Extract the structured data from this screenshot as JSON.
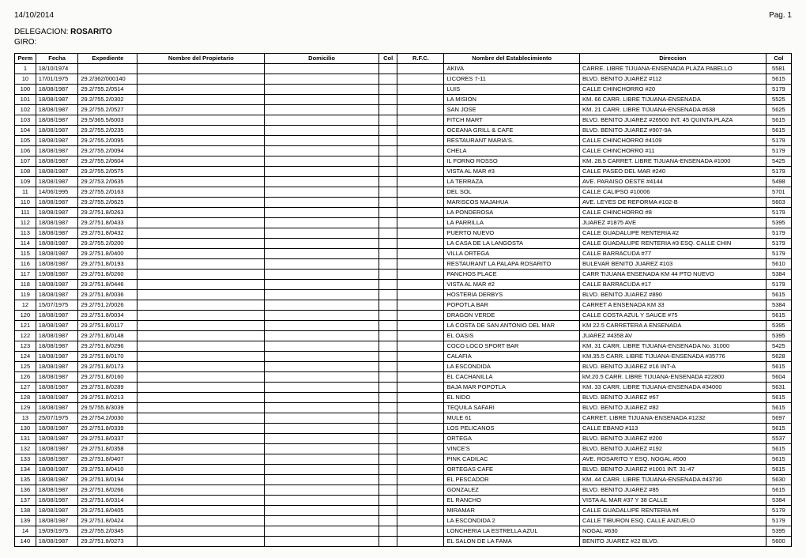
{
  "header": {
    "date": "14/10/2014",
    "page_label": "Pag. 1",
    "delegacion_label": "DELEGACION:",
    "delegacion_value": "ROSARITO",
    "giro_label": "GIRO:",
    "giro_value": ""
  },
  "columns": {
    "perm": "Perm",
    "fecha": "Fecha",
    "expediente": "Expediente",
    "propietario": "Nombre del Propietario",
    "domicilio": "Domicilio",
    "col1": "Col",
    "rfc": "R.F.C.",
    "establecimiento": "Nombre del Establecimiento",
    "direccion": "Direccion",
    "col2": "Col"
  },
  "rows": [
    {
      "perm": "1",
      "fecha": "18/10/1974",
      "exp": "",
      "est": "AKIVA",
      "dir": "CARRE. LIBRE TIJUANA-ENSENADA PLAZA PABELLO",
      "col2": "5581"
    },
    {
      "perm": "10",
      "fecha": "17/01/1975",
      "exp": "29.2/362/000140",
      "est": "LICORES 7-11",
      "dir": "BLVD. BENITO JUAREZ #112",
      "col2": "5615"
    },
    {
      "perm": "100",
      "fecha": "18/08/1987",
      "exp": "29.2/755.2/0514",
      "est": "LUIS",
      "dir": "CALLE CHINCHORRO #20",
      "col2": "5179"
    },
    {
      "perm": "101",
      "fecha": "18/08/1987",
      "exp": "29.2/755.2/0302",
      "est": "LA MISION",
      "dir": "KM. 66 CARR. LIBRE TIJUANA-ENSENADA",
      "col2": "5525"
    },
    {
      "perm": "102",
      "fecha": "18/08/1987",
      "exp": "29.2/755.2/0527",
      "est": "SAN JOSE",
      "dir": "KM. 21 CARR. LIBRE TIJUANA-ENSENADA #638",
      "col2": "5625"
    },
    {
      "perm": "103",
      "fecha": "18/08/1987",
      "exp": "29.5/365.5/6003",
      "est": "FITCH MART",
      "dir": "BLVD. BENITO JUAREZ #26500 INT. 45 QUINTA PLAZA",
      "col2": "5615"
    },
    {
      "perm": "104",
      "fecha": "18/08/1987",
      "exp": "29.2/755.2/0235",
      "est": "OCEANA GRILL & CAFE",
      "dir": "BLVD. BENITO JUAREZ #907-9A",
      "col2": "5615"
    },
    {
      "perm": "105",
      "fecha": "18/08/1987",
      "exp": "29.2/755.2/0095",
      "est": "RESTAURANT  MARIA'S.",
      "dir": "CALLE CHINCHORRO #4109",
      "col2": "5179"
    },
    {
      "perm": "106",
      "fecha": "18/08/1987",
      "exp": "29.2/755.2/0094",
      "est": "CHELA",
      "dir": "CALLE CHINCHORRO #11",
      "col2": "5179"
    },
    {
      "perm": "107",
      "fecha": "18/08/1987",
      "exp": "29.2/755.2/0604",
      "est": "IL FORNO ROSSO",
      "dir": "KM. 28.5 CARRET. LIBRE TIJUANA-ENSENADA #1000",
      "col2": "5425"
    },
    {
      "perm": "108",
      "fecha": "18/08/1987",
      "exp": "29.2/755.2/0575",
      "est": "VISTA AL MAR #3",
      "dir": "CALLE PASEO DEL MAR #240",
      "col2": "5179"
    },
    {
      "perm": "109",
      "fecha": "18/08/1987",
      "exp": "29.2/753.2/0635",
      "est": "LA TERRAZA",
      "dir": "AVE. PARAISO OESTE #4144",
      "col2": "5498"
    },
    {
      "perm": "11",
      "fecha": "14/06/1995",
      "exp": "29.2/755.2/0163",
      "est": "DEL SOL",
      "dir": "CALLE CALIPSO #10006",
      "col2": "5701"
    },
    {
      "perm": "110",
      "fecha": "18/08/1987",
      "exp": "29.2/755.2/0625",
      "est": "MARISCOS MAJAHUA",
      "dir": "AVE. LEYES DE REFORMA #102-B",
      "col2": "5603"
    },
    {
      "perm": "111",
      "fecha": "18/08/1987",
      "exp": "29.2/751.8/0263",
      "est": "LA PONDEROSA",
      "dir": "CALLE CHINCHORRO #8",
      "col2": "5179"
    },
    {
      "perm": "112",
      "fecha": "18/08/1987",
      "exp": "29.2/751.8/0433",
      "est": "LA PARRILLA",
      "dir": "JUAREZ #1875 AVE",
      "col2": "5395"
    },
    {
      "perm": "113",
      "fecha": "18/08/1987",
      "exp": "29.2/751.8/0432",
      "est": "PUERTO NUEVO",
      "dir": "CALLE GUADALUPE RENTERIA #2",
      "col2": "5179"
    },
    {
      "perm": "114",
      "fecha": "18/08/1987",
      "exp": "29.2/755.2/0200",
      "est": "LA CASA DE LA LANGOSTA",
      "dir": "CALLE GUADALUPE RENTERIA #3 ESQ. CALLE CHIN",
      "col2": "5179"
    },
    {
      "perm": "115",
      "fecha": "18/08/1987",
      "exp": "29.2/751.8/0400",
      "est": "VILLA ORTEGA",
      "dir": "CALLE BARRACUDA #77",
      "col2": "5179"
    },
    {
      "perm": "116",
      "fecha": "18/08/1987",
      "exp": "29.2/751.8/0193",
      "est": "RESTAURANT LA PALAPA ROSARITO",
      "dir": "BULEVAR BENITO JUAREZ #103",
      "col2": "5610"
    },
    {
      "perm": "117",
      "fecha": "19/08/1987",
      "exp": "29.2/751.8/0260",
      "est": "PANCHOS PLACE",
      "dir": "CARR TIJUANA ENSENADA KM 44 PTO NUEVO",
      "col2": "5384"
    },
    {
      "perm": "118",
      "fecha": "18/08/1987",
      "exp": "29.2/751.8/0446",
      "est": "VISTA AL MAR #2",
      "dir": "CALLE BARRACUDA #17",
      "col2": "5179"
    },
    {
      "perm": "119",
      "fecha": "18/08/1987",
      "exp": "29.2/751.8/0036",
      "est": "HOSTERIA DERBYS",
      "dir": "BLVD. BENITO JUAREZ #890",
      "col2": "5615"
    },
    {
      "perm": "12",
      "fecha": "15/07/1975",
      "exp": "29.2/751.2/0026",
      "est": "POPOTLA BAR",
      "dir": "CARRET A ENSENADA KM 33",
      "col2": "5384"
    },
    {
      "perm": "120",
      "fecha": "18/08/1987",
      "exp": "29.2/751.8/0034",
      "est": "DRAGON VERDE",
      "dir": "CALLE COSTA AZUL Y SAUCE #75",
      "col2": "5615"
    },
    {
      "perm": "121",
      "fecha": "18/08/1987",
      "exp": "29.2/751.8/0117",
      "est": "LA COSTA DE SAN ANTONIO DEL MAR",
      "dir": "KM 22.5 CARRETERA A ENSENADA",
      "col2": "5395"
    },
    {
      "perm": "122",
      "fecha": "18/08/1987",
      "exp": "29.2/751.8/0148",
      "est": "EL OASIS",
      "dir": "JUAREZ #4358 AV",
      "col2": "5395"
    },
    {
      "perm": "123",
      "fecha": "18/08/1987",
      "exp": "29.2/751.8/0296",
      "est": "COCO LOCO  SPORT BAR",
      "dir": "KM. 31 CARR. LIBRE TIJUANA-ENSENADA No. 31000",
      "col2": "5425"
    },
    {
      "perm": "124",
      "fecha": "18/08/1987",
      "exp": "29.2/751.8/0170",
      "est": "CALAFIA",
      "dir": "KM.35.5 CARR. LIBRE TIJUANA-ENSENADA #35776",
      "col2": "5628"
    },
    {
      "perm": "125",
      "fecha": "18/08/1987",
      "exp": "29.2/751.8/0173",
      "est": "LA ESCONDIDA",
      "dir": "BLVD. BENITO JUAREZ #16 INT-A",
      "col2": "5615"
    },
    {
      "perm": "126",
      "fecha": "18/08/1987",
      "exp": "29.2/751.8/0160",
      "est": "EL CACHANILLA",
      "dir": "kM.20.5 CARR. LIBRE TIJUANA-ENSENADA #22800",
      "col2": "5604"
    },
    {
      "perm": "127",
      "fecha": "18/08/1987",
      "exp": "29.2/751.8/0289",
      "est": "BAJA MAR POPOTLA",
      "dir": "KM. 33 CARR. LIBRE TIJUANA-ENSENADA #34000",
      "col2": "5631"
    },
    {
      "perm": "128",
      "fecha": "18/08/1987",
      "exp": "29.2/751.8/0213",
      "est": "EL NIDO",
      "dir": "BLVD. BENITO JUAREZ #67",
      "col2": "5615"
    },
    {
      "perm": "129",
      "fecha": "18/08/1987",
      "exp": "29.5/755.8/3039",
      "est": "TEQUILA SAFARI",
      "dir": "BLVD. BENITO JUAREZ #82",
      "col2": "5615"
    },
    {
      "perm": "13",
      "fecha": "25/07/1975",
      "exp": "29.2/754.2/0030",
      "est": "MULE 61",
      "dir": "CARRET. LIBRE TIJUANA-ENSENADA #1232",
      "col2": "5697"
    },
    {
      "perm": "130",
      "fecha": "18/08/1987",
      "exp": "29.2/751.8/0339",
      "est": "LOS PELICANOS",
      "dir": "CALLE EBANO #113",
      "col2": "5615"
    },
    {
      "perm": "131",
      "fecha": "18/08/1987",
      "exp": "29.2/751.8/0337",
      "est": "ORTEGA",
      "dir": "BLVD. BENITO JUAREZ #200",
      "col2": "5537"
    },
    {
      "perm": "132",
      "fecha": "18/08/1987",
      "exp": "29.2/751.8/0358",
      "est": "VINCE'S",
      "dir": "BLVD. BENITO JUAREZ #192",
      "col2": "5615"
    },
    {
      "perm": "133",
      "fecha": "18/08/1987",
      "exp": "29.2/751.8/0407",
      "est": "PINK CADILAC",
      "dir": "AVE. ROSARITO Y ESQ. NOGAL #500",
      "col2": "5615"
    },
    {
      "perm": "134",
      "fecha": "18/08/1987",
      "exp": "29.2/751.8/0410",
      "est": "ORTEGAS CAFE",
      "dir": "BLVD. BENITO JUAREZ #1001  INT. 31-47",
      "col2": "5615"
    },
    {
      "perm": "135",
      "fecha": "18/08/1987",
      "exp": "29.2/751.8/0194",
      "est": "EL PESCADOR",
      "dir": "KM. 44 CARR. LIBRE TIJUANA-ENSENADA #43730",
      "col2": "5630"
    },
    {
      "perm": "136",
      "fecha": "18/08/1987",
      "exp": "29.2/751.8/0266",
      "est": "GONZALEZ",
      "dir": "BLVD. BENITO JUAREZ #85",
      "col2": "5615"
    },
    {
      "perm": "137",
      "fecha": "18/08/1987",
      "exp": "29.2/751.8/0314",
      "est": "EL RANCHO",
      "dir": "VISTA AL MAR #37 Y 38 CALLE",
      "col2": "5384"
    },
    {
      "perm": "138",
      "fecha": "18/08/1987",
      "exp": "29.2/751.8/0405",
      "est": "MIRAMAR",
      "dir": "CALLE GUADALUPE RENTERIA #4",
      "col2": "5179"
    },
    {
      "perm": "139",
      "fecha": "18/08/1987",
      "exp": "29.2/751.8/0424",
      "est": "LA  ESCONDIDA  2",
      "dir": "CALLE TIBURON ESQ. CALLE ANZUELO",
      "col2": "5179"
    },
    {
      "perm": "14",
      "fecha": "19/09/1975",
      "exp": "29.2/755.2/0345",
      "est": "LONCHERIA LA ESTRELLA AZUL",
      "dir": "NOGAL #630",
      "col2": "5395"
    },
    {
      "perm": "140",
      "fecha": "18/08/1987",
      "exp": "29.2/751.8/0273",
      "est": "EL SALON DE LA FAMA",
      "dir": "BENITO JUAREZ #22 BLVD.",
      "col2": "5600"
    }
  ]
}
